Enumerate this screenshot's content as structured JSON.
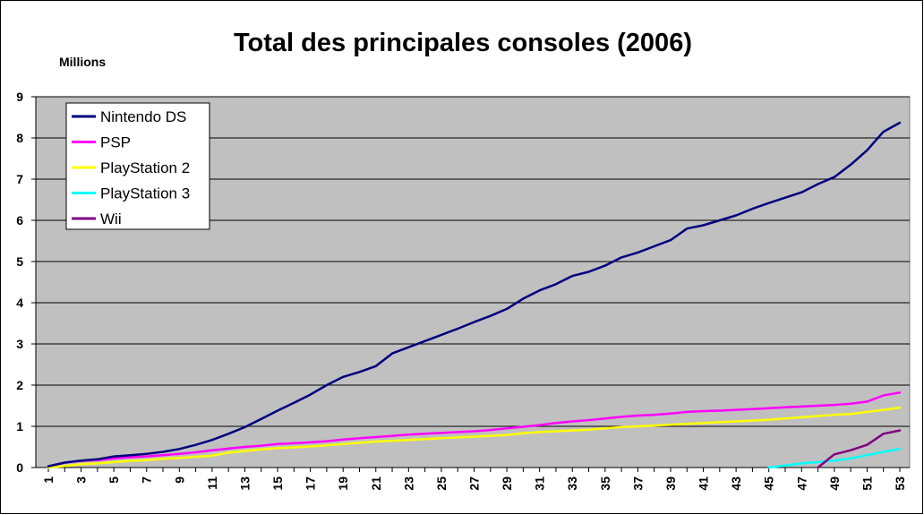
{
  "chart_data": {
    "type": "line",
    "title": "Total des principales consoles (2006)",
    "ylabel": "Millions",
    "xlabel": "",
    "ylim": [
      0,
      9
    ],
    "yticks": [
      0,
      1,
      2,
      3,
      4,
      5,
      6,
      7,
      8,
      9
    ],
    "x": [
      1,
      2,
      3,
      4,
      5,
      6,
      7,
      8,
      9,
      10,
      11,
      12,
      13,
      14,
      15,
      16,
      17,
      18,
      19,
      20,
      21,
      22,
      23,
      24,
      25,
      26,
      27,
      28,
      29,
      30,
      31,
      32,
      33,
      34,
      35,
      36,
      37,
      38,
      39,
      40,
      41,
      42,
      43,
      44,
      45,
      46,
      47,
      48,
      49,
      50,
      51,
      52,
      53
    ],
    "xtick_labels": [
      "1",
      "3",
      "5",
      "7",
      "9",
      "11",
      "13",
      "15",
      "17",
      "19",
      "21",
      "23",
      "25",
      "27",
      "29",
      "31",
      "33",
      "35",
      "37",
      "39",
      "41",
      "43",
      "45",
      "47",
      "49",
      "51",
      "53"
    ],
    "grid": true,
    "legend_position": "top-left",
    "series": [
      {
        "name": "Nintendo DS",
        "color": "#000080",
        "values": [
          0.03,
          0.12,
          0.17,
          0.2,
          0.27,
          0.3,
          0.33,
          0.38,
          0.45,
          0.55,
          0.67,
          0.82,
          0.98,
          1.18,
          1.38,
          1.57,
          1.77,
          2.0,
          2.2,
          2.32,
          2.46,
          2.77,
          2.92,
          3.07,
          3.22,
          3.37,
          3.53,
          3.68,
          3.85,
          4.1,
          4.3,
          4.45,
          4.65,
          4.75,
          4.9,
          5.1,
          5.22,
          5.37,
          5.52,
          5.8,
          5.88,
          6.0,
          6.12,
          6.28,
          6.42,
          6.55,
          6.68,
          6.88,
          7.05,
          7.35,
          7.7,
          8.15,
          8.37
        ]
      },
      {
        "name": "PSP",
        "color": "#ff00ff",
        "values": [
          0.03,
          0.12,
          0.16,
          0.18,
          0.22,
          0.25,
          0.27,
          0.3,
          0.33,
          0.37,
          0.42,
          0.46,
          0.5,
          0.53,
          0.57,
          0.59,
          0.61,
          0.64,
          0.68,
          0.71,
          0.74,
          0.77,
          0.8,
          0.82,
          0.84,
          0.86,
          0.88,
          0.91,
          0.95,
          0.99,
          1.03,
          1.08,
          1.12,
          1.15,
          1.19,
          1.23,
          1.26,
          1.28,
          1.31,
          1.35,
          1.37,
          1.38,
          1.4,
          1.42,
          1.44,
          1.46,
          1.48,
          1.5,
          1.52,
          1.55,
          1.6,
          1.75,
          1.82
        ]
      },
      {
        "name": "PlayStation 2",
        "color": "#ffff00",
        "values": [
          0.0,
          0.04,
          0.08,
          0.1,
          0.13,
          0.16,
          0.18,
          0.21,
          0.23,
          0.26,
          0.29,
          0.36,
          0.4,
          0.44,
          0.47,
          0.49,
          0.51,
          0.54,
          0.57,
          0.6,
          0.63,
          0.65,
          0.67,
          0.69,
          0.71,
          0.73,
          0.75,
          0.77,
          0.79,
          0.83,
          0.86,
          0.88,
          0.9,
          0.92,
          0.95,
          0.98,
          1.0,
          1.02,
          1.04,
          1.06,
          1.08,
          1.1,
          1.12,
          1.14,
          1.16,
          1.19,
          1.22,
          1.25,
          1.28,
          1.3,
          1.35,
          1.4,
          1.45
        ]
      },
      {
        "name": "PlayStation 3",
        "color": "#00ffff",
        "values": [
          null,
          null,
          null,
          null,
          null,
          null,
          null,
          null,
          null,
          null,
          null,
          null,
          null,
          null,
          null,
          null,
          null,
          null,
          null,
          null,
          null,
          null,
          null,
          null,
          null,
          null,
          null,
          null,
          null,
          null,
          null,
          null,
          null,
          null,
          null,
          null,
          null,
          null,
          null,
          null,
          null,
          null,
          null,
          null,
          0.0,
          0.05,
          0.1,
          0.13,
          0.17,
          0.22,
          0.3,
          0.38,
          0.45
        ]
      },
      {
        "name": "Wii",
        "color": "#800080",
        "values": [
          null,
          null,
          null,
          null,
          null,
          null,
          null,
          null,
          null,
          null,
          null,
          null,
          null,
          null,
          null,
          null,
          null,
          null,
          null,
          null,
          null,
          null,
          null,
          null,
          null,
          null,
          null,
          null,
          null,
          null,
          null,
          null,
          null,
          null,
          null,
          null,
          null,
          null,
          null,
          null,
          null,
          null,
          null,
          null,
          null,
          null,
          null,
          0.0,
          0.32,
          0.42,
          0.55,
          0.82,
          0.9
        ]
      }
    ]
  }
}
